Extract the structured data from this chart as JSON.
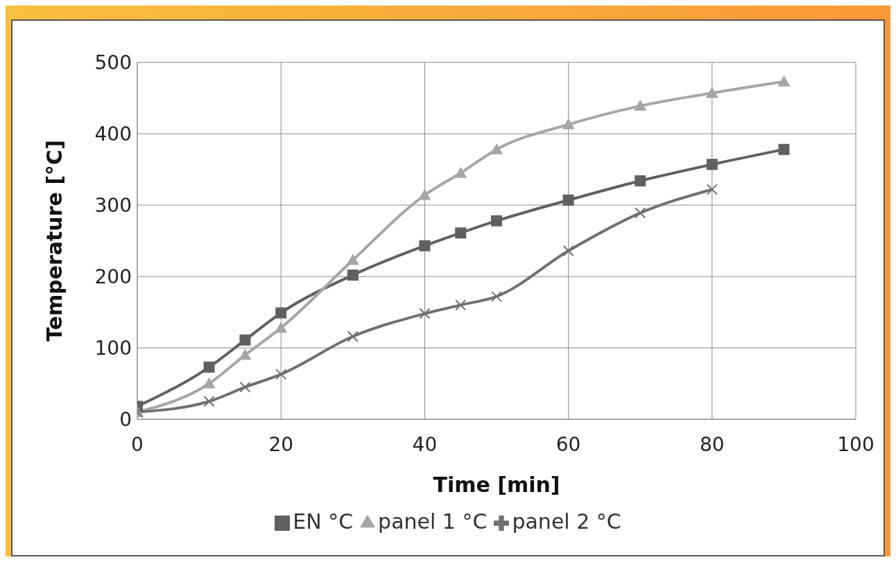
{
  "chart_data": {
    "type": "line",
    "xlabel": "Time [min]",
    "ylabel": "Temperature [°C]",
    "xlim": [
      0,
      100
    ],
    "xticks": [
      0,
      20,
      40,
      60,
      80,
      100
    ],
    "ylim": [
      0,
      500
    ],
    "yticks": [
      0,
      100,
      200,
      300,
      400,
      500
    ],
    "grid": true,
    "legend": "bottom",
    "line_style": "solid",
    "series": [
      {
        "name": "EN  °C",
        "color": "#606060",
        "marker": "square",
        "x": [
          0,
          10,
          15,
          20,
          30,
          40,
          45,
          50,
          60,
          70,
          80,
          90
        ],
        "values": [
          18,
          73,
          111,
          149,
          202,
          243,
          261,
          278,
          307,
          334,
          357,
          378
        ]
      },
      {
        "name": "panel 1 °C",
        "color": "#a6a6a6",
        "marker": "triangle",
        "x": [
          0,
          10,
          15,
          20,
          30,
          40,
          45,
          50,
          60,
          70,
          80,
          90
        ],
        "values": [
          10,
          50,
          90,
          128,
          223,
          314,
          345,
          378,
          413,
          439,
          457,
          473
        ]
      },
      {
        "name": "panel 2 °C",
        "color": "#707070",
        "marker": "cross",
        "x": [
          0,
          10,
          15,
          20,
          30,
          40,
          45,
          50,
          60,
          70,
          80
        ],
        "values": [
          10,
          25,
          45,
          63,
          116,
          148,
          160,
          172,
          236,
          289,
          322
        ]
      }
    ]
  }
}
